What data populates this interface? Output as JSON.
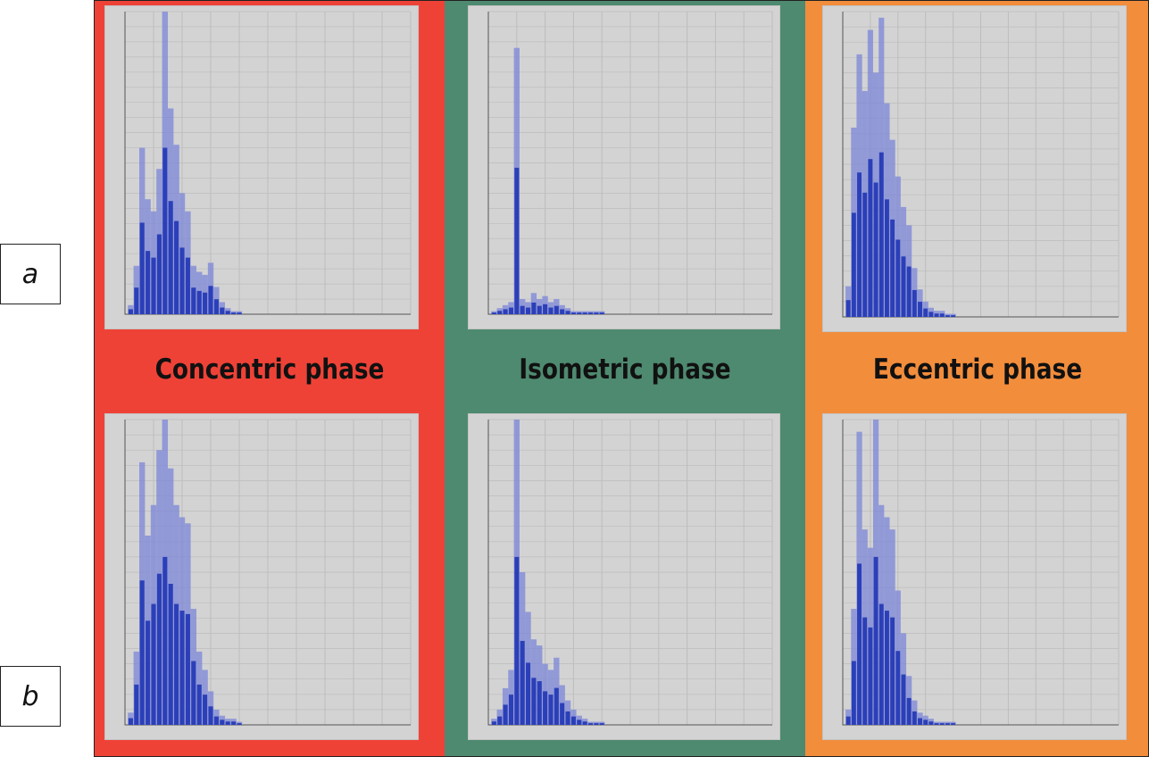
{
  "row_labels": {
    "a": "a",
    "b": "b"
  },
  "phases": [
    {
      "name": "Concentric phase",
      "color": "#ef4237"
    },
    {
      "name": "Isometric phase",
      "color": "#4e8a70"
    },
    {
      "name": "Eccentric phase",
      "color": "#f28d3c"
    }
  ],
  "colors": {
    "plot_background": "#d3d3d3",
    "grid": "#bdbdbd",
    "bars": "#2b3fb8",
    "bars_light": "#7b86d8"
  },
  "chart_data": [
    {
      "type": "bar",
      "row": "a",
      "phase": "Concentric phase",
      "x_range": [
        0,
        1000
      ],
      "y_range": [
        0,
        1
      ],
      "grid": true,
      "x": [
        20,
        40,
        60,
        80,
        100,
        120,
        140,
        160,
        180,
        200,
        220,
        240,
        260,
        280,
        300,
        320,
        340,
        360,
        380,
        400
      ],
      "values": [
        0.03,
        0.16,
        0.55,
        0.38,
        0.34,
        0.48,
        1.0,
        0.68,
        0.56,
        0.4,
        0.34,
        0.16,
        0.14,
        0.13,
        0.17,
        0.09,
        0.04,
        0.02,
        0.01,
        0.01
      ]
    },
    {
      "type": "bar",
      "row": "a",
      "phase": "Isometric phase",
      "x_range": [
        0,
        1000
      ],
      "y_range": [
        0,
        1
      ],
      "grid": true,
      "x": [
        20,
        40,
        60,
        80,
        100,
        120,
        140,
        160,
        180,
        200,
        220,
        240,
        260,
        280,
        300,
        320,
        340,
        360,
        380,
        400
      ],
      "values": [
        0.01,
        0.02,
        0.03,
        0.04,
        0.88,
        0.05,
        0.04,
        0.07,
        0.05,
        0.06,
        0.04,
        0.05,
        0.03,
        0.02,
        0.01,
        0.01,
        0.01,
        0.01,
        0.01,
        0.01
      ]
    },
    {
      "type": "bar",
      "row": "a",
      "phase": "Eccentric phase",
      "x_range": [
        0,
        1000
      ],
      "y_range": [
        0,
        1
      ],
      "grid": true,
      "x": [
        20,
        40,
        60,
        80,
        100,
        120,
        140,
        160,
        180,
        200,
        220,
        240,
        260,
        280,
        300,
        320,
        340,
        360,
        380,
        400
      ],
      "values": [
        0.1,
        0.62,
        0.86,
        0.74,
        0.94,
        0.8,
        0.98,
        0.7,
        0.58,
        0.46,
        0.36,
        0.3,
        0.16,
        0.09,
        0.05,
        0.03,
        0.02,
        0.02,
        0.01,
        0.01
      ]
    },
    {
      "type": "bar",
      "row": "b",
      "phase": "Concentric phase",
      "x_range": [
        0,
        1000
      ],
      "y_range": [
        0,
        1
      ],
      "grid": true,
      "x": [
        20,
        40,
        60,
        80,
        100,
        120,
        140,
        160,
        180,
        200,
        220,
        240,
        260,
        280,
        300,
        320,
        340,
        360,
        380,
        400
      ],
      "values": [
        0.04,
        0.24,
        0.86,
        0.62,
        0.72,
        0.9,
        1.0,
        0.84,
        0.72,
        0.68,
        0.66,
        0.38,
        0.24,
        0.18,
        0.11,
        0.05,
        0.03,
        0.02,
        0.02,
        0.01
      ]
    },
    {
      "type": "bar",
      "row": "b",
      "phase": "Isometric phase",
      "x_range": [
        0,
        1000
      ],
      "y_range": [
        0,
        1
      ],
      "grid": true,
      "x": [
        20,
        40,
        60,
        80,
        100,
        120,
        140,
        160,
        180,
        200,
        220,
        240,
        260,
        280,
        300,
        320,
        340,
        360,
        380,
        400
      ],
      "values": [
        0.02,
        0.05,
        0.12,
        0.18,
        1.0,
        0.5,
        0.37,
        0.28,
        0.26,
        0.2,
        0.18,
        0.22,
        0.13,
        0.08,
        0.05,
        0.03,
        0.02,
        0.01,
        0.01,
        0.01
      ]
    },
    {
      "type": "bar",
      "row": "b",
      "phase": "Eccentric phase",
      "x_range": [
        0,
        1000
      ],
      "y_range": [
        0,
        1
      ],
      "grid": true,
      "x": [
        20,
        40,
        60,
        80,
        100,
        120,
        140,
        160,
        180,
        200,
        220,
        240,
        260,
        280,
        300,
        320,
        340,
        360,
        380,
        400
      ],
      "values": [
        0.05,
        0.38,
        0.96,
        0.64,
        0.58,
        1.0,
        0.72,
        0.68,
        0.64,
        0.44,
        0.3,
        0.16,
        0.08,
        0.04,
        0.03,
        0.02,
        0.01,
        0.01,
        0.01,
        0.01
      ]
    }
  ]
}
